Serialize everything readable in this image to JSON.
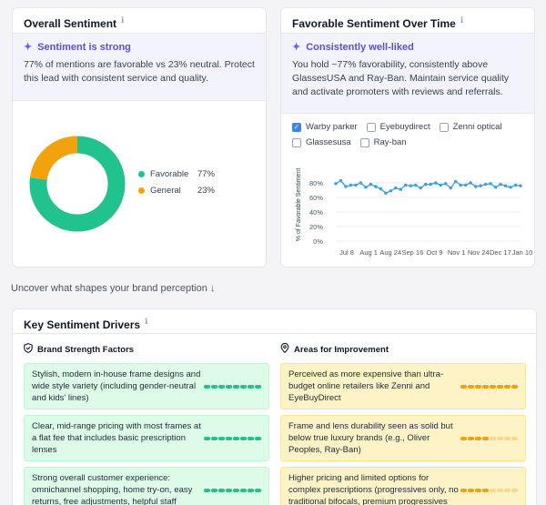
{
  "overall": {
    "title": "Overall Sentiment",
    "info_icon": "info-icon",
    "insight_title": "Sentiment is strong",
    "insight_text": "77% of mentions are favorable vs 23% neutral. Protect this lead with consistent service and quality.",
    "legend": [
      {
        "label": "Favorable",
        "value": "77%",
        "color": "#21c28e"
      },
      {
        "label": "General",
        "value": "23%",
        "color": "#f2a20c"
      }
    ]
  },
  "over_time": {
    "title": "Favorable Sentiment Over Time",
    "insight_title": "Consistently well-liked",
    "insight_text": "You hold ~77% favorability, consistently above GlassesUSA and Ray-Ban. Maintain service quality and activate promoters with reviews and referrals.",
    "brands": [
      {
        "label": "Warby parker",
        "checked": true
      },
      {
        "label": "Eyebuydirect",
        "checked": false
      },
      {
        "label": "Zenni optical",
        "checked": false
      },
      {
        "label": "Glassesusa",
        "checked": false
      },
      {
        "label": "Ray-ban",
        "checked": false
      }
    ]
  },
  "chart_data": {
    "type": "line",
    "ylabel": "% of Favorable Sentiment",
    "ylim": [
      0,
      100
    ],
    "yticks": [
      "80%",
      "60%",
      "40%",
      "20%",
      "0%"
    ],
    "xticks": [
      "Jul 8",
      "Aug 1",
      "Aug 24",
      "Sep 16",
      "Oct 9",
      "Nov 1",
      "Nov 24",
      "Dec 17",
      "Jan 10"
    ],
    "grid": true,
    "series": [
      {
        "name": "Warby parker",
        "color": "#3b9fe0",
        "values": [
          79,
          83,
          75,
          77,
          77,
          80,
          74,
          78,
          75,
          72,
          66,
          69,
          73,
          71,
          77,
          76,
          77,
          73,
          78,
          78,
          80,
          77,
          79,
          73,
          82,
          77,
          77,
          80,
          75,
          76,
          78,
          79,
          74,
          78,
          76,
          74,
          77,
          76
        ]
      }
    ]
  },
  "caption": "Uncover what shapes your brand perception ↓",
  "drivers": {
    "title": "Key Sentiment Drivers",
    "strength_title": "Brand Strength Factors",
    "improve_title": "Areas for Improvement",
    "strengths": [
      {
        "text": "Stylish, modern in-house frame designs and wide style variety (including gender-neutral and kids' lines)",
        "level": 1.0
      },
      {
        "text": "Clear, mid-range pricing with most frames at a flat fee that includes basic prescription lenses",
        "level": 1.0
      },
      {
        "text": "Strong overall customer experience: omnichannel shopping, home try-on, easy returns, free adjustments, helpful staff",
        "level": 1.0
      }
    ],
    "improvements": [
      {
        "text": "Perceived as more expensive than ultra-budget online retailers like Zenni and EyeBuyDirect",
        "level": 1.0
      },
      {
        "text": "Frame and lens durability seen as solid but below true luxury brands (e.g., Oliver Peoples, Ray-Ban)",
        "level": 0.5
      },
      {
        "text": "Higher pricing and limited options for complex prescriptions (progressives only, no traditional bifocals, premium progressives",
        "level": 0.5
      }
    ]
  }
}
